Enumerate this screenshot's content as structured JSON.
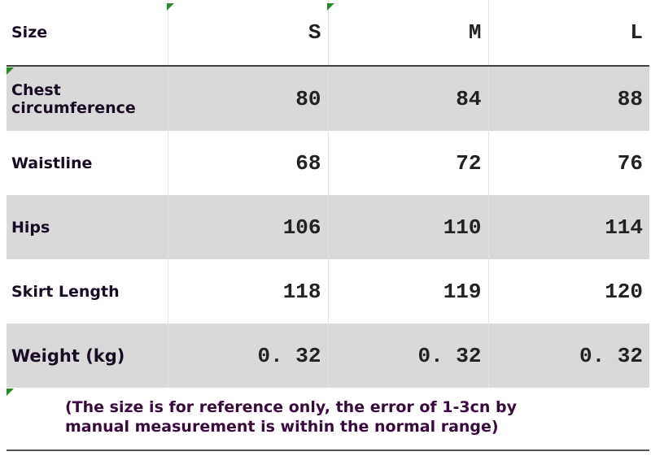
{
  "table": {
    "header": [
      "Size",
      "S",
      "M",
      "L"
    ],
    "rows": [
      [
        "Chest circumference",
        "80",
        "84",
        "88"
      ],
      [
        "Waistline",
        "68",
        "72",
        "76"
      ],
      [
        "Hips",
        "106",
        "110",
        "114"
      ],
      [
        "Skirt Length",
        "118",
        "119",
        "120"
      ],
      [
        "Weight (kg)",
        "0. 32",
        "0. 32",
        "0. 32"
      ]
    ]
  },
  "note": "(The size is for reference only, the error of 1-3cn by manual measurement is within the normal range)"
}
